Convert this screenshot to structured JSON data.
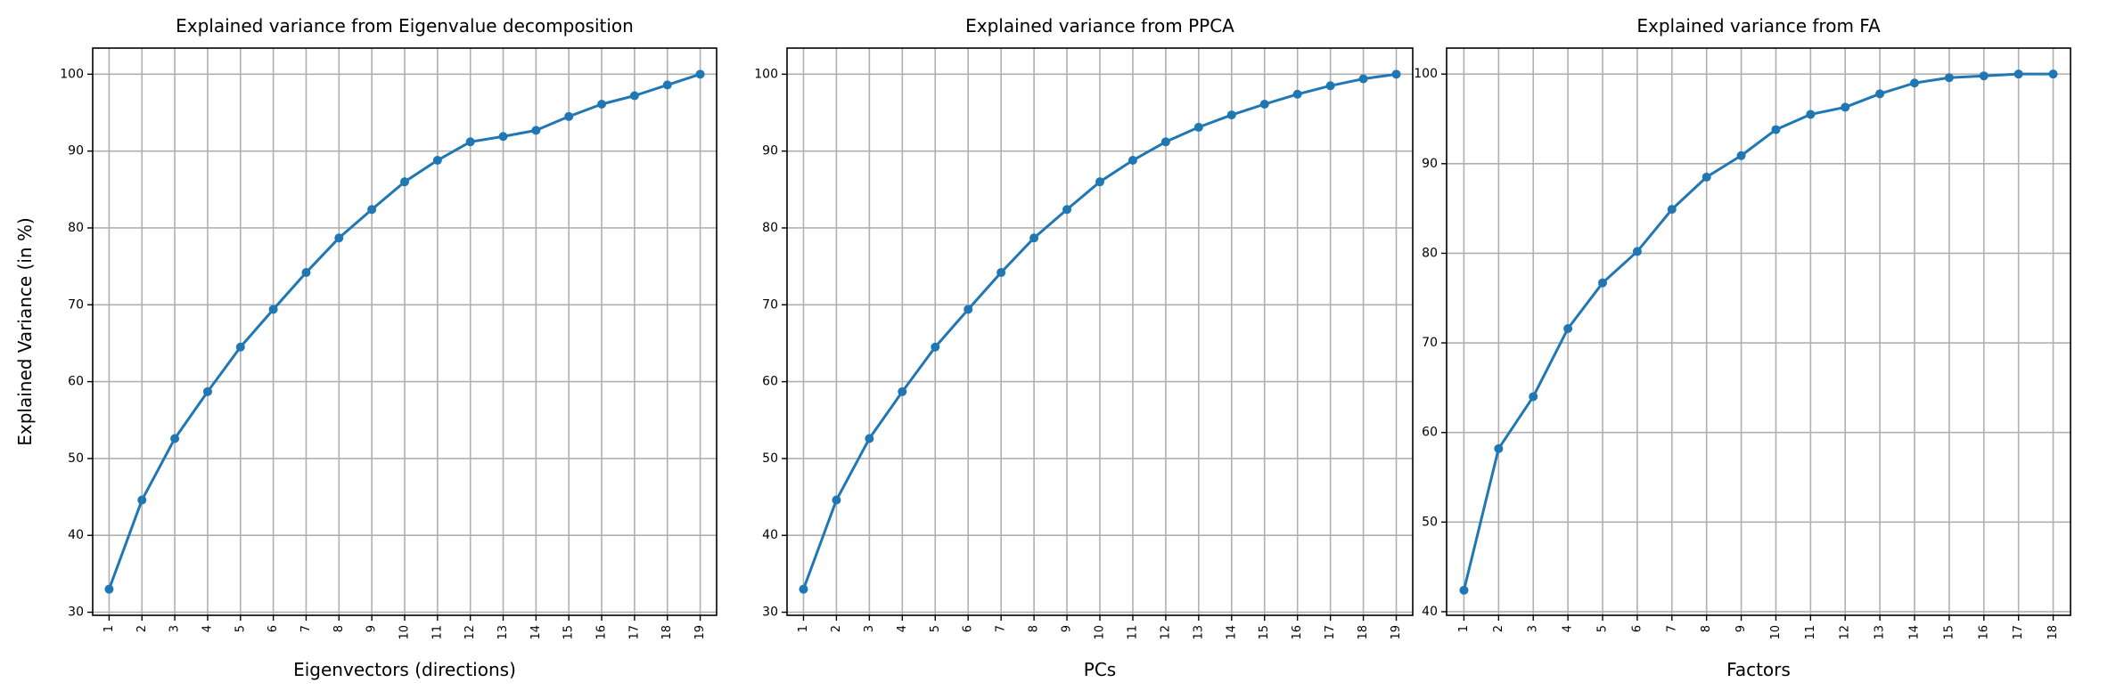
{
  "chart_data": [
    {
      "type": "line",
      "title": "Explained variance from Eigenvalue decomposition",
      "xlabel": "Eigenvectors (directions)",
      "ylabel": "Explained Variance (in %)",
      "categories": [
        "1",
        "2",
        "3",
        "4",
        "5",
        "6",
        "7",
        "8",
        "9",
        "10",
        "11",
        "12",
        "13",
        "14",
        "15",
        "16",
        "17",
        "18",
        "19"
      ],
      "x": [
        1,
        2,
        3,
        4,
        5,
        6,
        7,
        8,
        9,
        10,
        11,
        12,
        13,
        14,
        15,
        16,
        17,
        18,
        19
      ],
      "y": [
        33.0,
        44.6,
        52.6,
        58.7,
        64.5,
        69.4,
        74.2,
        78.7,
        82.4,
        86.0,
        88.8,
        91.2,
        91.9,
        92.7,
        94.5,
        96.1,
        97.2,
        98.6,
        100.0
      ],
      "yticks": [
        30,
        40,
        50,
        60,
        70,
        80,
        90,
        100
      ],
      "ylim": [
        29.6,
        103.4
      ],
      "grid": true,
      "color": "#1f77b4"
    },
    {
      "type": "line",
      "title": "Explained variance from PPCA",
      "xlabel": "PCs",
      "ylabel": "",
      "categories": [
        "1",
        "2",
        "3",
        "4",
        "5",
        "6",
        "7",
        "8",
        "9",
        "10",
        "11",
        "12",
        "13",
        "14",
        "15",
        "16",
        "17",
        "18",
        "19"
      ],
      "x": [
        1,
        2,
        3,
        4,
        5,
        6,
        7,
        8,
        9,
        10,
        11,
        12,
        13,
        14,
        15,
        16,
        17,
        18,
        19
      ],
      "y": [
        33.0,
        44.6,
        52.6,
        58.7,
        64.5,
        69.4,
        74.2,
        78.7,
        82.4,
        86.0,
        88.8,
        91.2,
        93.1,
        94.7,
        96.1,
        97.4,
        98.5,
        99.4,
        100.0
      ],
      "yticks": [
        30,
        40,
        50,
        60,
        70,
        80,
        90,
        100
      ],
      "ylim": [
        29.6,
        103.4
      ],
      "grid": true,
      "color": "#1f77b4"
    },
    {
      "type": "line",
      "title": "Explained variance from FA",
      "xlabel": "Factors",
      "ylabel": "",
      "categories": [
        "1",
        "2",
        "3",
        "4",
        "5",
        "6",
        "7",
        "8",
        "9",
        "10",
        "11",
        "12",
        "13",
        "14",
        "15",
        "16",
        "17",
        "18"
      ],
      "x": [
        1,
        2,
        3,
        4,
        5,
        6,
        7,
        8,
        9,
        10,
        11,
        12,
        13,
        14,
        15,
        16,
        17,
        18
      ],
      "y": [
        42.4,
        58.2,
        64.0,
        71.6,
        76.7,
        80.2,
        84.9,
        88.5,
        90.9,
        93.8,
        95.5,
        96.3,
        97.8,
        99.0,
        99.6,
        99.8,
        100.0,
        100.0
      ],
      "yticks": [
        40,
        50,
        60,
        70,
        80,
        90,
        100
      ],
      "ylim": [
        39.6,
        102.9
      ],
      "grid": true,
      "color": "#1f77b4"
    }
  ]
}
